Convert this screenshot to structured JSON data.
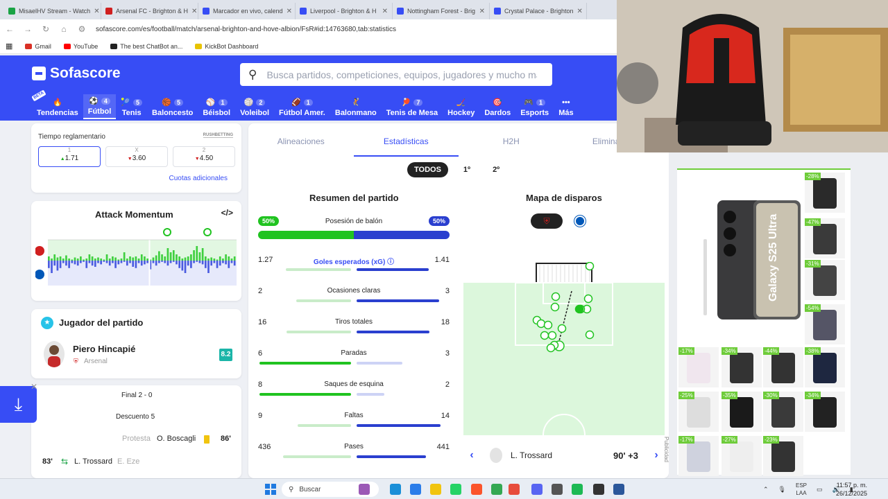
{
  "browser": {
    "tabs": [
      {
        "title": "MisaelHV Stream - Watch",
        "color": "#1aa345"
      },
      {
        "title": "Arsenal FC - Brighton & H",
        "color": "#d01f1f"
      },
      {
        "title": "Marcador en vivo, calend",
        "color": "#374df5"
      },
      {
        "title": "Liverpool - Brighton & H",
        "color": "#374df5"
      },
      {
        "title": "Nottingham Forest - Brig",
        "color": "#374df5"
      },
      {
        "title": "Crystal Palace - Brighton",
        "color": "#374df5"
      }
    ],
    "url": "sofascore.com/es/football/match/arsenal-brighton-and-hove-albion/FsR#id:14763680,tab:statistics",
    "bookmarks": [
      {
        "label": "Gmail",
        "color": "#d93025"
      },
      {
        "label": "YouTube",
        "color": "#ff0000"
      },
      {
        "label": "The best ChatBot an...",
        "color": "#222222"
      },
      {
        "label": "KickBot Dashboard",
        "color": "#e8c300"
      }
    ]
  },
  "header": {
    "logo": "Sofascore",
    "search_placeholder": "Busca partidos, competiciones, equipos, jugadores y mucho más",
    "beta": "BETA",
    "sports": [
      {
        "label": "Tendencias",
        "count": "",
        "icon": "🔥",
        "active": false
      },
      {
        "label": "Fútbol",
        "count": "4",
        "icon": "⚽",
        "active": true
      },
      {
        "label": "Tenis",
        "count": "5",
        "icon": "🎾",
        "active": false
      },
      {
        "label": "Baloncesto",
        "count": "5",
        "icon": "🏀",
        "active": false
      },
      {
        "label": "Béisbol",
        "count": "1",
        "icon": "⚾",
        "active": false
      },
      {
        "label": "Voleibol",
        "count": "2",
        "icon": "🏐",
        "active": false
      },
      {
        "label": "Fútbol Amer.",
        "count": "1",
        "icon": "🏈",
        "active": false
      },
      {
        "label": "Balonmano",
        "count": "",
        "icon": "🤾",
        "active": false
      },
      {
        "label": "Tenis de Mesa",
        "count": "7",
        "icon": "🏓",
        "active": false
      },
      {
        "label": "Hockey",
        "count": "",
        "icon": "🏒",
        "active": false
      },
      {
        "label": "Dardos",
        "count": "",
        "icon": "🎯",
        "active": false
      },
      {
        "label": "Esports",
        "count": "1",
        "icon": "🎮",
        "active": false
      },
      {
        "label": "Más",
        "count": "",
        "icon": "•••",
        "active": false
      }
    ]
  },
  "odds": {
    "title": "Tiempo reglamentario",
    "brand": "RUSHBETTING",
    "options": [
      {
        "key": "1",
        "value": "1.71",
        "trend": "up"
      },
      {
        "key": "X",
        "value": "3.60",
        "trend": "down"
      },
      {
        "key": "2",
        "value": "4.50",
        "trend": "down"
      }
    ],
    "more": "Cuotas adicionales"
  },
  "momentum": {
    "title": "Attack Momentum",
    "embed": "</>",
    "home_color": "#7bd97b",
    "away_color": "#7b8cf0",
    "home_values": [
      0.2,
      0.1,
      0.3,
      0.15,
      0.2,
      0.1,
      0.25,
      0.1,
      0.05,
      0.15,
      0.1,
      0.2,
      0.05,
      0.1,
      0.3,
      0.2,
      0.1,
      0.15,
      0.1,
      0.05,
      0.3,
      0.1,
      0.2,
      0.15,
      0.05,
      0.1,
      0.4,
      0.1,
      0.2,
      0.15,
      0.2,
      0.1,
      0.3,
      0.2,
      0.1,
      0.05,
      0.15,
      0.25,
      0.45,
      0.3,
      0.2,
      0.6,
      0.4,
      0.5,
      0.3,
      0.2,
      0.1,
      0.15,
      0.2,
      0.3,
      0.5,
      0.7,
      0.4,
      0.6,
      0.2,
      0.1,
      0.15,
      0.1,
      0.05,
      0.2,
      0.1,
      0.3,
      0.2,
      0.1,
      0.2
    ],
    "away_values": [
      0.3,
      0.5,
      0.2,
      0.4,
      0.3,
      0.1,
      0.2,
      0.3,
      0.1,
      0.15,
      0.2,
      0.1,
      0.05,
      0.3,
      0.1,
      0.2,
      0.25,
      0.1,
      0.15,
      0.05,
      0.1,
      0.2,
      0.1,
      0.3,
      0.15,
      0.1,
      0.05,
      0.2,
      0.1,
      0.25,
      0.3,
      0.1,
      0.2,
      0.15,
      0.1,
      0.35,
      0.1,
      0.2,
      0.1,
      0.05,
      0.1,
      0.2,
      0.1,
      0.05,
      0.15,
      0.3,
      0.4,
      0.5,
      0.2,
      0.3,
      0.1,
      0.05,
      0.1,
      0.15,
      0.3,
      0.5,
      0.2,
      0.1,
      0.3,
      0.2,
      0.1,
      0.15,
      0.3,
      0.1,
      0.2
    ],
    "halftime_index": 35
  },
  "player": {
    "title": "Jugador del partido",
    "name": "Piero Hincapié",
    "team": "Arsenal",
    "rating": "8.2"
  },
  "events": [
    {
      "text": "Final 2 - 0"
    },
    {
      "text": "Descuento 5"
    },
    {
      "reason": "Protesta",
      "player": "O. Boscagli",
      "minute": "86'"
    },
    {
      "minute": "83'",
      "player_in": "L. Trossard",
      "player_out": "E. Eze"
    }
  ],
  "stats": {
    "tabs": [
      "Alineaciones",
      "Estadísticas",
      "H2H",
      "Eliminatorias"
    ],
    "active_tab": "Estadísticas",
    "periods": [
      "TODOS",
      "1º",
      "2º"
    ],
    "summary_title": "Resumen del partido",
    "possession": {
      "label": "Posesión de balón",
      "home": "50%",
      "away": "50%",
      "home_value": 50
    },
    "home_color": "#20c320",
    "away_color": "#2a3fcf",
    "rows": [
      {
        "label": "Goles esperados (xG)",
        "home": "1.27",
        "away": "1.41",
        "h": 1.27,
        "a": 1.41,
        "highlight": true
      },
      {
        "label": "Ocasiones claras",
        "home": "2",
        "away": "3",
        "h": 2,
        "a": 3
      },
      {
        "label": "Tiros totales",
        "home": "16",
        "away": "18",
        "h": 16,
        "a": 18
      },
      {
        "label": "Paradas",
        "home": "6",
        "away": "3",
        "h": 6,
        "a": 3
      },
      {
        "label": "Saques de esquina",
        "home": "8",
        "away": "2",
        "h": 8,
        "a": 2
      },
      {
        "label": "Faltas",
        "home": "9",
        "away": "14",
        "h": 9,
        "a": 14
      },
      {
        "label": "Pases",
        "home": "436",
        "away": "441",
        "h": 436,
        "a": 441
      }
    ],
    "shotmap_title": "Mapa de disparos",
    "shot_player": "L. Trossard",
    "shot_minute": "90' +3"
  },
  "ads": {
    "side_label": "Publicidad",
    "featured": "Galaxy S25 Ultra",
    "discounts": [
      "-28%",
      "-47%",
      "-31%",
      "-54%",
      "-17%",
      "-34%",
      "-44%",
      "-38%",
      "-25%",
      "-35%",
      "-30%",
      "-34%",
      "-17%",
      "-27%",
      "-23%"
    ]
  },
  "taskbar": {
    "search": "Buscar",
    "lang_top": "ESP",
    "lang_bottom": "LAA",
    "time": "11:57 p. m.",
    "date": "26/12/2025"
  }
}
